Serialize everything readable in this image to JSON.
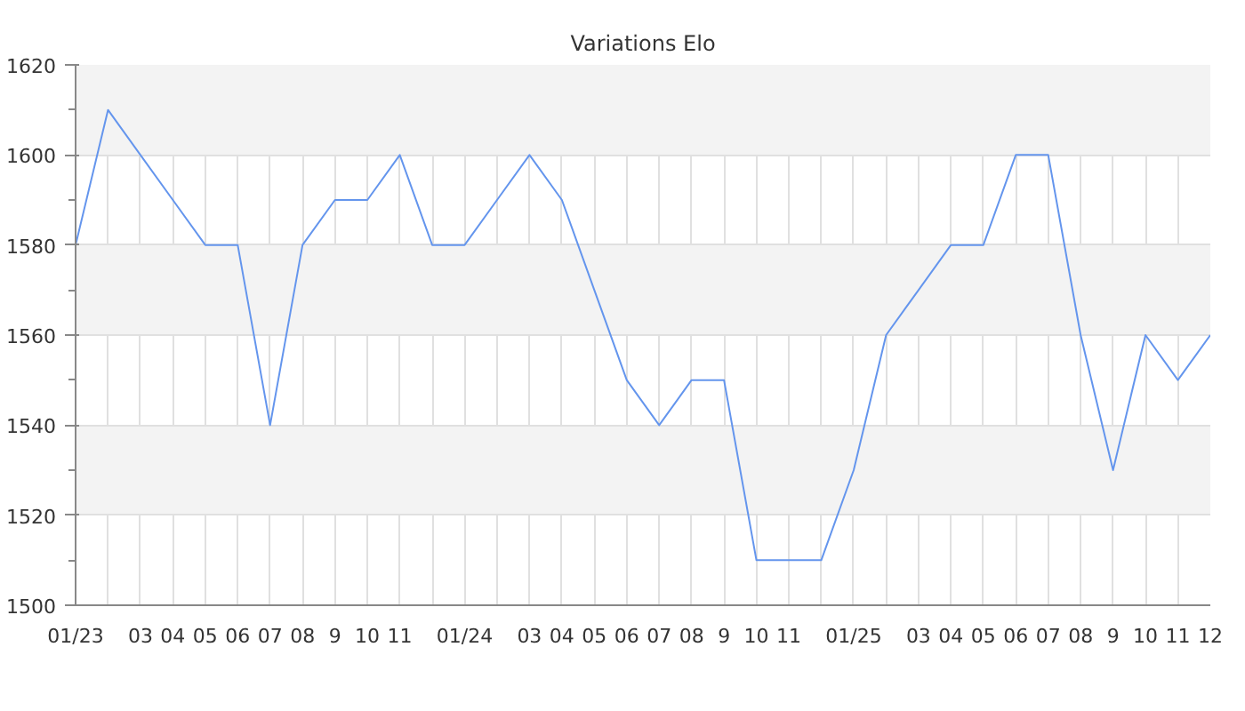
{
  "chart_data": {
    "type": "line",
    "title": "Variations Elo",
    "categories": [
      "01/23",
      null,
      "03",
      "04",
      "05",
      "06",
      "07",
      "08",
      "9",
      "10",
      "11",
      null,
      "01/24",
      null,
      "03",
      "04",
      "05",
      "06",
      "07",
      "08",
      "9",
      "10",
      "11",
      null,
      "01/25",
      null,
      "03",
      "04",
      "05",
      "06",
      "07",
      "08",
      "9",
      "10",
      "11",
      "12"
    ],
    "series": [
      {
        "color": "#6495ed",
        "values": [
          1580,
          1610,
          1600,
          1590,
          1580,
          1580,
          1540,
          1580,
          1590,
          1590,
          1600,
          1580,
          1580,
          1590,
          1600,
          1590,
          1570,
          1550,
          1540,
          1550,
          1550,
          1510,
          1510,
          1510,
          1530,
          1560,
          1570,
          1580,
          1580,
          1600,
          1600,
          1560,
          1530,
          1560,
          1550,
          1560
        ]
      }
    ],
    "ylim": [
      1500,
      1620
    ],
    "yticks": [
      1500,
      1520,
      1540,
      1560,
      1580,
      1600,
      1620
    ],
    "grid": true,
    "marker": "none",
    "line_style": "solid"
  }
}
